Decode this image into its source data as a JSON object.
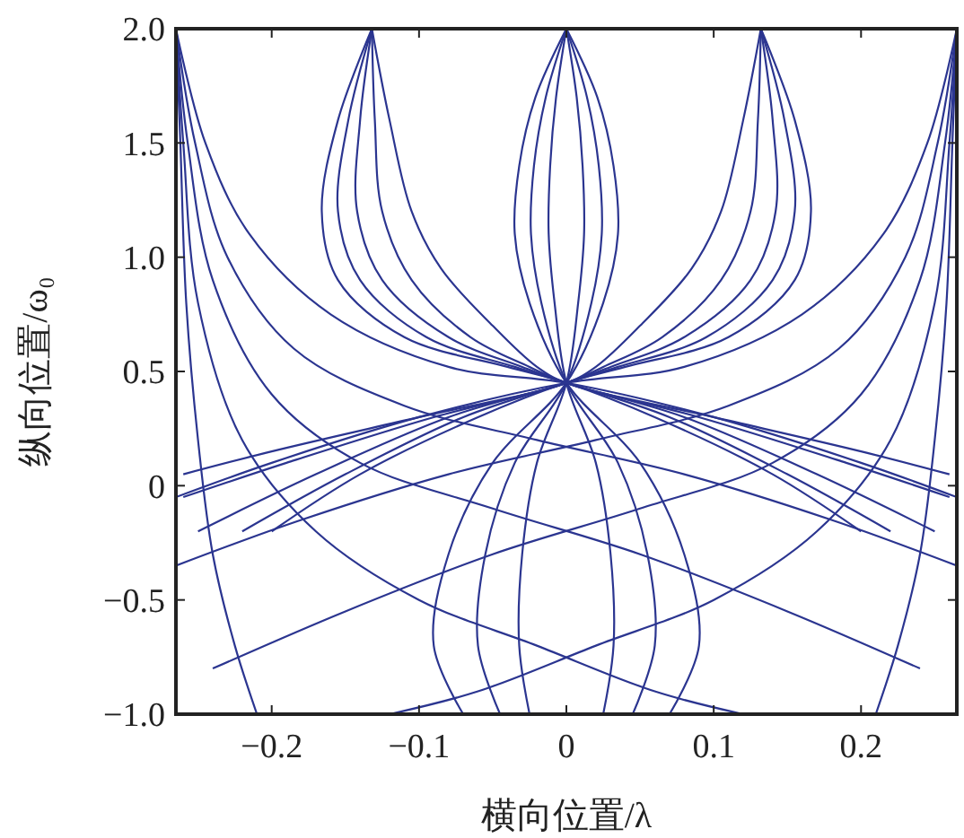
{
  "chart_data": {
    "type": "line",
    "xlabel": "横向位置/λ",
    "ylabel": "纵向位置/ω₀",
    "xlim": [
      -0.265,
      0.265
    ],
    "ylim": [
      -1,
      2
    ],
    "xticks": [
      {
        "value": -0.2,
        "label": "−0.2"
      },
      {
        "value": -0.1,
        "label": "−0.1"
      },
      0,
      0.1,
      0.2
    ],
    "yticks": [
      {
        "value": -1,
        "label": "−1.0"
      },
      {
        "value": -0.5,
        "label": "−0.5"
      },
      0,
      {
        "value": 0.5,
        "label": "0.5"
      },
      {
        "value": 1,
        "label": "1.0"
      },
      {
        "value": 1.5,
        "label": "1.5"
      },
      {
        "value": 2,
        "label": "2.0"
      }
    ],
    "grid": false,
    "series": [
      {
        "color": "#2b3590",
        "x": [
          0,
          0.021,
          0.032,
          0.035,
          0.025,
          0,
          -0.05,
          -0.08,
          -0.09,
          -0.07
        ],
        "values": [
          2,
          1.7,
          1.4,
          1.1,
          0.8,
          0.45,
          0.1,
          -0.3,
          -0.7,
          -1
        ]
      },
      {
        "color": "#2b3590",
        "x": [
          0,
          -0.021,
          -0.032,
          -0.035,
          -0.025,
          0,
          0.05,
          0.08,
          0.09,
          0.07
        ],
        "values": [
          2,
          1.7,
          1.4,
          1.1,
          0.8,
          0.45,
          0.1,
          -0.3,
          -0.7,
          -1
        ]
      },
      {
        "color": "#2b3590",
        "x": [
          0,
          0.014,
          0.022,
          0.024,
          0.017,
          0,
          -0.035,
          -0.055,
          -0.06,
          -0.045
        ],
        "values": [
          2,
          1.7,
          1.4,
          1.1,
          0.8,
          0.45,
          0.1,
          -0.3,
          -0.7,
          -1
        ]
      },
      {
        "color": "#2b3590",
        "x": [
          0,
          -0.014,
          -0.022,
          -0.024,
          -0.017,
          0,
          0.035,
          0.055,
          0.06,
          0.045
        ],
        "values": [
          2,
          1.7,
          1.4,
          1.1,
          0.8,
          0.45,
          0.1,
          -0.3,
          -0.7,
          -1
        ]
      },
      {
        "color": "#2b3590",
        "x": [
          0,
          0.007,
          0.011,
          0.012,
          0.008,
          0,
          -0.02,
          -0.03,
          -0.032,
          -0.025
        ],
        "values": [
          2,
          1.7,
          1.4,
          1.1,
          0.8,
          0.45,
          0.1,
          -0.3,
          -0.7,
          -1
        ]
      },
      {
        "color": "#2b3590",
        "x": [
          0,
          -0.007,
          -0.011,
          -0.012,
          -0.008,
          0,
          0.02,
          0.03,
          0.032,
          0.025
        ],
        "values": [
          2,
          1.7,
          1.4,
          1.1,
          0.8,
          0.45,
          0.1,
          -0.3,
          -0.7,
          -1
        ]
      },
      {
        "color": "#2b3590",
        "x": [
          -0.132,
          -0.155,
          -0.166,
          -0.155,
          -0.11,
          -0.04,
          0,
          0.06,
          0.14,
          0.2
        ],
        "values": [
          2,
          1.6,
          1.2,
          0.9,
          0.65,
          0.52,
          0.45,
          0.3,
          0.05,
          -0.2
        ]
      },
      {
        "color": "#2b3590",
        "x": [
          -0.132,
          -0.148,
          -0.155,
          -0.14,
          -0.095,
          -0.035,
          0,
          0.07,
          0.15,
          0.22
        ],
        "values": [
          2,
          1.6,
          1.2,
          0.9,
          0.65,
          0.52,
          0.45,
          0.3,
          0.05,
          -0.2
        ]
      },
      {
        "color": "#2b3590",
        "x": [
          -0.132,
          -0.14,
          -0.142,
          -0.125,
          -0.08,
          -0.03,
          0,
          0.08,
          0.17,
          0.25
        ],
        "values": [
          2,
          1.6,
          1.2,
          0.9,
          0.65,
          0.52,
          0.45,
          0.3,
          0.05,
          -0.2
        ]
      },
      {
        "color": "#2b3590",
        "x": [
          -0.132,
          -0.13,
          -0.125,
          -0.105,
          -0.065,
          -0.025,
          0,
          0.09,
          0.19,
          0.26
        ],
        "values": [
          2,
          1.6,
          1.2,
          0.9,
          0.65,
          0.52,
          0.45,
          0.3,
          0.1,
          -0.05
        ]
      },
      {
        "color": "#2b3590",
        "x": [
          -0.132,
          -0.12,
          -0.105,
          -0.085,
          -0.05,
          -0.02,
          0,
          0.1,
          0.2,
          0.26
        ],
        "values": [
          2,
          1.6,
          1.2,
          0.95,
          0.7,
          0.52,
          0.45,
          0.3,
          0.15,
          0.05
        ]
      },
      {
        "color": "#2b3590",
        "x": [
          0.132,
          0.155,
          0.166,
          0.155,
          0.11,
          0.04,
          0,
          -0.06,
          -0.14,
          -0.2
        ],
        "values": [
          2,
          1.6,
          1.2,
          0.9,
          0.65,
          0.52,
          0.45,
          0.3,
          0.05,
          -0.2
        ]
      },
      {
        "color": "#2b3590",
        "x": [
          0.132,
          0.148,
          0.155,
          0.14,
          0.095,
          0.035,
          0,
          -0.07,
          -0.15,
          -0.22
        ],
        "values": [
          2,
          1.6,
          1.2,
          0.9,
          0.65,
          0.52,
          0.45,
          0.3,
          0.05,
          -0.2
        ]
      },
      {
        "color": "#2b3590",
        "x": [
          0.132,
          0.14,
          0.142,
          0.125,
          0.08,
          0.03,
          0,
          -0.08,
          -0.17,
          -0.25
        ],
        "values": [
          2,
          1.6,
          1.2,
          0.9,
          0.65,
          0.52,
          0.45,
          0.3,
          0.05,
          -0.2
        ]
      },
      {
        "color": "#2b3590",
        "x": [
          0.132,
          0.13,
          0.125,
          0.105,
          0.065,
          0.025,
          0,
          -0.09,
          -0.19,
          -0.26
        ],
        "values": [
          2,
          1.6,
          1.2,
          0.9,
          0.65,
          0.52,
          0.45,
          0.3,
          0.1,
          -0.05
        ]
      },
      {
        "color": "#2b3590",
        "x": [
          0.132,
          0.12,
          0.105,
          0.085,
          0.05,
          0.02,
          0,
          -0.1,
          -0.2,
          -0.26
        ],
        "values": [
          2,
          1.6,
          1.2,
          0.95,
          0.7,
          0.52,
          0.45,
          0.3,
          0.15,
          0.05
        ]
      },
      {
        "color": "#2b3590",
        "x": [
          -0.265,
          -0.245,
          -0.215,
          -0.16,
          -0.08,
          0,
          0.1,
          0.2,
          0.265
        ],
        "values": [
          2,
          1.5,
          1.1,
          0.75,
          0.52,
          0.45,
          0.3,
          0.1,
          -0.05
        ]
      },
      {
        "color": "#2b3590",
        "x": [
          -0.265,
          -0.252,
          -0.23,
          -0.185,
          -0.11,
          -0.02,
          0.08,
          0.18,
          0.265
        ],
        "values": [
          2,
          1.5,
          1,
          0.6,
          0.35,
          0.2,
          0.05,
          -0.15,
          -0.35
        ]
      },
      {
        "color": "#2b3590",
        "x": [
          -0.265,
          -0.257,
          -0.24,
          -0.2,
          -0.14,
          -0.05,
          0.05,
          0.15,
          0.24
        ],
        "values": [
          2,
          1.5,
          0.9,
          0.4,
          0.1,
          -0.1,
          -0.3,
          -0.55,
          -0.8
        ]
      },
      {
        "color": "#2b3590",
        "x": [
          -0.265,
          -0.26,
          -0.25,
          -0.22,
          -0.17,
          -0.1,
          -0.02,
          0.06,
          0.12
        ],
        "values": [
          2,
          1.5,
          0.8,
          0.2,
          -0.2,
          -0.5,
          -0.7,
          -0.9,
          -1
        ]
      },
      {
        "color": "#2b3590",
        "x": [
          -0.265,
          -0.262,
          -0.258,
          -0.25,
          -0.24,
          -0.225,
          -0.21
        ],
        "values": [
          2,
          1.5,
          0.8,
          0.2,
          -0.3,
          -0.7,
          -1
        ]
      },
      {
        "color": "#2b3590",
        "x": [
          0.265,
          0.245,
          0.215,
          0.16,
          0.08,
          0,
          -0.1,
          -0.2,
          -0.265
        ],
        "values": [
          2,
          1.5,
          1.1,
          0.75,
          0.52,
          0.45,
          0.3,
          0.1,
          -0.05
        ]
      },
      {
        "color": "#2b3590",
        "x": [
          0.265,
          0.252,
          0.23,
          0.185,
          0.11,
          0.02,
          -0.08,
          -0.18,
          -0.265
        ],
        "values": [
          2,
          1.5,
          1,
          0.6,
          0.35,
          0.2,
          0.05,
          -0.15,
          -0.35
        ]
      },
      {
        "color": "#2b3590",
        "x": [
          0.265,
          0.257,
          0.24,
          0.2,
          0.14,
          0.05,
          -0.05,
          -0.15,
          -0.24
        ],
        "values": [
          2,
          1.5,
          0.9,
          0.4,
          0.1,
          -0.1,
          -0.3,
          -0.55,
          -0.8
        ]
      },
      {
        "color": "#2b3590",
        "x": [
          0.265,
          0.26,
          0.25,
          0.22,
          0.17,
          0.1,
          0.02,
          -0.06,
          -0.12
        ],
        "values": [
          2,
          1.5,
          0.8,
          0.2,
          -0.2,
          -0.5,
          -0.7,
          -0.9,
          -1
        ]
      },
      {
        "color": "#2b3590",
        "x": [
          0.265,
          0.262,
          0.258,
          0.25,
          0.24,
          0.225,
          0.21
        ],
        "values": [
          2,
          1.5,
          0.8,
          0.2,
          -0.3,
          -0.7,
          -1
        ]
      }
    ]
  }
}
